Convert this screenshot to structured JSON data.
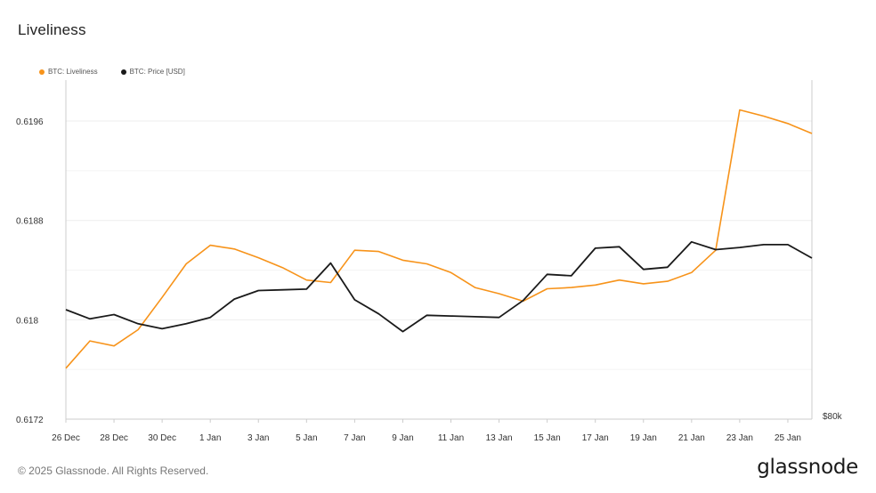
{
  "title": "Liveliness",
  "footer": "© 2025 Glassnode. All Rights Reserved.",
  "brand": "glassnode",
  "colors": {
    "liveliness": "#f7931a",
    "price": "#1a1a1a",
    "grid": "#eeeeee",
    "axis": "#cccccc"
  },
  "chart_data": {
    "type": "line",
    "title": "Liveliness",
    "x": [
      "2024-12-26",
      "2024-12-27",
      "2024-12-28",
      "2024-12-29",
      "2024-12-30",
      "2024-12-31",
      "2025-01-01",
      "2025-01-02",
      "2025-01-03",
      "2025-01-04",
      "2025-01-05",
      "2025-01-06",
      "2025-01-07",
      "2025-01-08",
      "2025-01-09",
      "2025-01-10",
      "2025-01-11",
      "2025-01-12",
      "2025-01-13",
      "2025-01-14",
      "2025-01-15",
      "2025-01-16",
      "2025-01-17",
      "2025-01-18",
      "2025-01-19",
      "2025-01-20",
      "2025-01-21",
      "2025-01-22",
      "2025-01-23",
      "2025-01-24",
      "2025-01-25",
      "2025-01-26"
    ],
    "x_tick_labels": [
      "26 Dec",
      "28 Dec",
      "30 Dec",
      "1 Jan",
      "3 Jan",
      "5 Jan",
      "7 Jan",
      "9 Jan",
      "11 Jan",
      "13 Jan",
      "15 Jan",
      "17 Jan",
      "19 Jan",
      "21 Jan",
      "23 Jan",
      "25 Jan"
    ],
    "y_tick_labels": [
      "0.6196",
      "0.6188",
      "0.618",
      "0.6172"
    ],
    "y_ticks": [
      0.6196,
      0.6188,
      0.618,
      0.6172
    ],
    "ylim": [
      0.6172,
      0.61993
    ],
    "y2_tick_labels": [
      "$80k"
    ],
    "grid": true,
    "legend": "top-left",
    "series": [
      {
        "name": "BTC: Liveliness",
        "axis": "left",
        "values": [
          0.61761,
          0.61783,
          0.61779,
          0.61792,
          0.61818,
          0.61845,
          0.6186,
          0.61857,
          0.6185,
          0.61842,
          0.61832,
          0.6183,
          0.61856,
          0.61855,
          0.61848,
          0.61845,
          0.61838,
          0.61826,
          0.61821,
          0.61815,
          0.61825,
          0.61826,
          0.61828,
          0.61832,
          0.61829,
          0.61831,
          0.61838,
          0.61856,
          0.61969,
          0.61964,
          0.61958,
          0.6195
        ]
      },
      {
        "name": "BTC: Price [USD]",
        "axis": "right",
        "values": [
          95.5,
          94.2,
          94.8,
          93.5,
          92.8,
          93.5,
          94.4,
          97.0,
          98.2,
          98.3,
          98.4,
          102.1,
          96.9,
          94.9,
          92.4,
          94.7,
          94.6,
          94.5,
          94.4,
          96.8,
          100.5,
          100.3,
          104.2,
          104.4,
          101.2,
          101.5,
          105.1,
          104.0,
          104.3,
          104.7,
          104.7,
          102.8
        ]
      }
    ],
    "y2lim": [
      80,
      128
    ]
  }
}
